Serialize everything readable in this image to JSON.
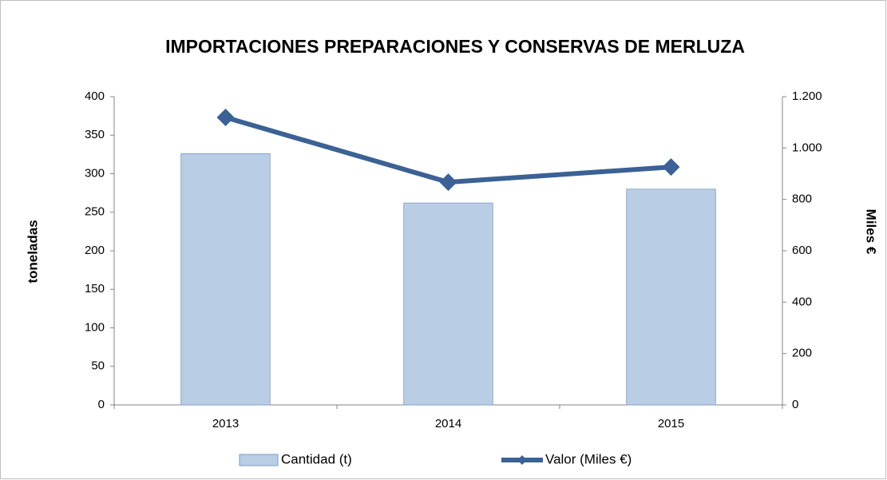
{
  "chart_data": {
    "type": "combo",
    "title": "IMPORTACIONES PREPARACIONES Y CONSERVAS DE MERLUZA",
    "categories": [
      "2013",
      "2014",
      "2015"
    ],
    "series": [
      {
        "name": "Cantidad (t)",
        "type": "bar",
        "color": "#b9cde5",
        "values": [
          326,
          262,
          280
        ]
      },
      {
        "name": "Valor (Miles €)",
        "type": "line",
        "axis": "y2",
        "color": "#3b6195",
        "values": [
          1119,
          867,
          926
        ]
      }
    ],
    "ylabel": "toneladas",
    "y2label": "Miles €",
    "ylim": [
      0,
      400
    ],
    "yticks": [
      0,
      50,
      100,
      150,
      200,
      250,
      300,
      350,
      400
    ],
    "y2lim": [
      0,
      1200
    ],
    "y2ticks": [
      0,
      200,
      400,
      600,
      800,
      {
        "value": 1000,
        "label": "1.000"
      },
      {
        "value": 1200,
        "label": "1.200"
      }
    ],
    "grid": false,
    "legend": "bottom"
  }
}
